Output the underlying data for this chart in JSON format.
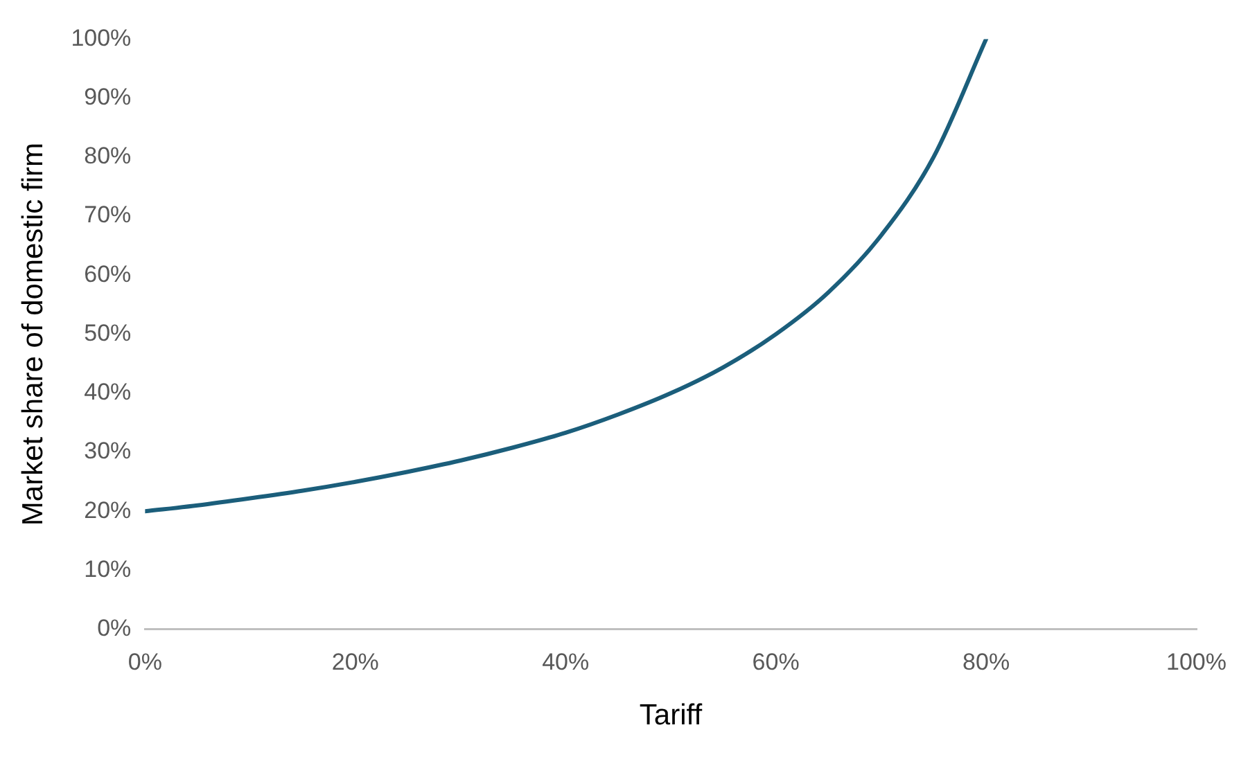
{
  "chart_data": {
    "type": "line",
    "xlabel": "Tariff",
    "ylabel": "Market share of domestic firm",
    "series": [
      {
        "color": "#1b5e7b",
        "x": [
          0,
          5,
          10,
          15,
          20,
          25,
          30,
          35,
          40,
          45,
          50,
          55,
          60,
          65,
          70,
          75,
          80
        ],
        "values": [
          20,
          21,
          22.2,
          23.5,
          25,
          26.7,
          28.6,
          30.8,
          33.3,
          36.4,
          40,
          44.4,
          50,
          57.1,
          66.7,
          80,
          100
        ]
      }
    ],
    "xlim": [
      0,
      100
    ],
    "xticks": [
      {
        "value": 0,
        "label": "0%"
      },
      {
        "value": 20,
        "label": "20%"
      },
      {
        "value": 40,
        "label": "40%"
      },
      {
        "value": 60,
        "label": "60%"
      },
      {
        "value": 80,
        "label": "80%"
      },
      {
        "value": 100,
        "label": "100%"
      }
    ],
    "ylim": [
      0,
      100
    ],
    "yticks": [
      {
        "value": 0,
        "label": "0%"
      },
      {
        "value": 10,
        "label": "10%"
      },
      {
        "value": 20,
        "label": "20%"
      },
      {
        "value": 30,
        "label": "30%"
      },
      {
        "value": 40,
        "label": "40%"
      },
      {
        "value": 50,
        "label": "50%"
      },
      {
        "value": 60,
        "label": "60%"
      },
      {
        "value": 70,
        "label": "70%"
      },
      {
        "value": 80,
        "label": "80%"
      },
      {
        "value": 90,
        "label": "90%"
      },
      {
        "value": 100,
        "label": "100%"
      }
    ],
    "grid": false,
    "legend": false,
    "marker": "none",
    "line_style": "solid"
  }
}
